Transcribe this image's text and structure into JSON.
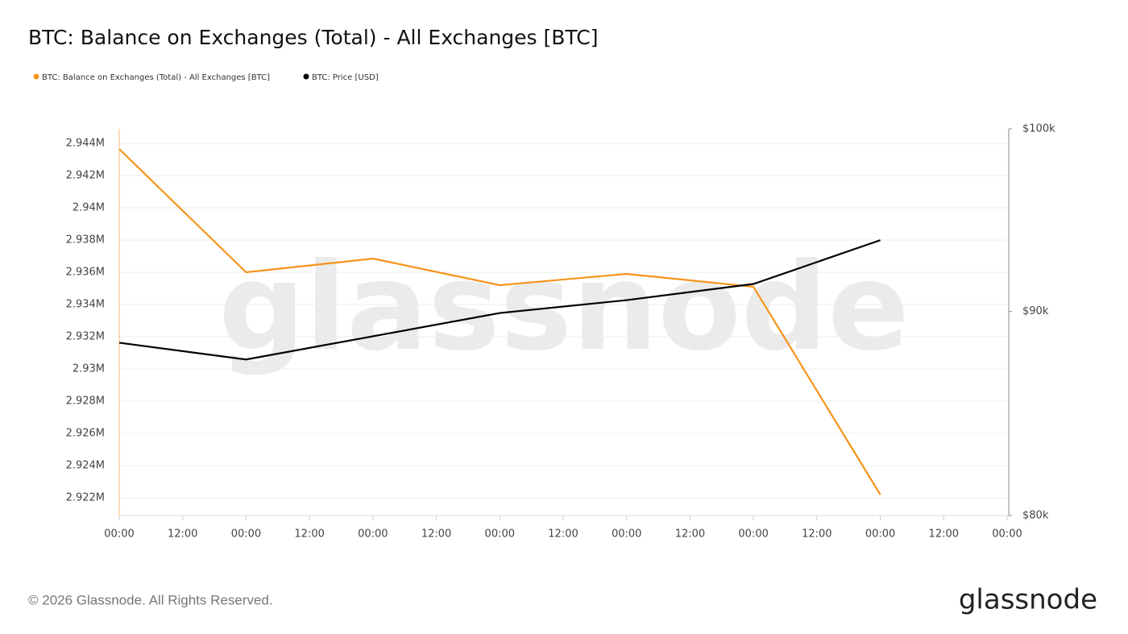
{
  "chart_data": {
    "type": "line",
    "title": "BTC: Balance on Exchanges (Total) - All Exchanges [BTC]",
    "x": [
      0,
      24,
      48,
      72,
      96,
      120,
      144
    ],
    "xlim": [
      0,
      168
    ],
    "xticks": [
      {
        "value": 0,
        "label": "00:00"
      },
      {
        "value": 12,
        "label": "12:00"
      },
      {
        "value": 24,
        "label": "00:00"
      },
      {
        "value": 36,
        "label": "12:00"
      },
      {
        "value": 48,
        "label": "00:00"
      },
      {
        "value": 60,
        "label": "12:00"
      },
      {
        "value": 72,
        "label": "00:00"
      },
      {
        "value": 84,
        "label": "12:00"
      },
      {
        "value": 96,
        "label": "00:00"
      },
      {
        "value": 108,
        "label": "12:00"
      },
      {
        "value": 120,
        "label": "00:00"
      },
      {
        "value": 132,
        "label": "12:00"
      },
      {
        "value": 144,
        "label": "00:00"
      },
      {
        "value": 156,
        "label": "12:00"
      },
      {
        "value": 168,
        "label": "00:00"
      }
    ],
    "ylim": [
      2920900,
      2944900
    ],
    "yticks": [
      {
        "value": 2922000,
        "label": "2.922M"
      },
      {
        "value": 2924000,
        "label": "2.924M"
      },
      {
        "value": 2926000,
        "label": "2.926M"
      },
      {
        "value": 2928000,
        "label": "2.928M"
      },
      {
        "value": 2930000,
        "label": "2.93M"
      },
      {
        "value": 2932000,
        "label": "2.932M"
      },
      {
        "value": 2934000,
        "label": "2.934M"
      },
      {
        "value": 2936000,
        "label": "2.936M"
      },
      {
        "value": 2938000,
        "label": "2.938M"
      },
      {
        "value": 2940000,
        "label": "2.94M"
      },
      {
        "value": 2942000,
        "label": "2.942M"
      },
      {
        "value": 2944000,
        "label": "2.944M"
      }
    ],
    "y2lim": [
      80000,
      100000
    ],
    "y2scale": "log",
    "y2ticks": [
      {
        "value": 80000,
        "label": "$80k"
      },
      {
        "value": 90000,
        "label": "$90k"
      },
      {
        "value": 100000,
        "label": "$100k"
      }
    ],
    "grid": true,
    "series": [
      {
        "name": "BTC: Balance on Exchanges (Total) - All Exchanges [BTC]",
        "color": "#f7931a",
        "values": [
          2943650,
          2936000,
          2936850,
          2935200,
          2935900,
          2935100,
          2922200
        ]
      },
      {
        "name": "BTC: Price [USD]",
        "color": "#000000",
        "axis": "y2",
        "values": [
          88390,
          87540,
          88720,
          89920,
          90590,
          91440,
          93780
        ]
      }
    ],
    "watermark": "glassnode",
    "footer": "© 2026 Glassnode. All Rights Reserved.",
    "logo": "glassnode"
  }
}
